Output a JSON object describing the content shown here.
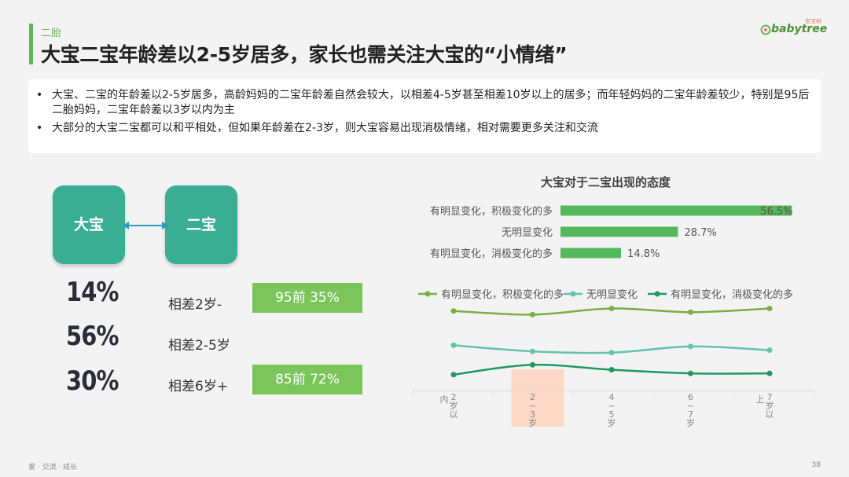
{
  "header": {
    "section_label": "二胎",
    "title": "大宝二宝年龄差以2-5岁居多，家长也需关注大宝的“小情绪”",
    "logo_text": "babytree",
    "logo_small": "宝宝树"
  },
  "bullets": [
    "大宝、二宝的年龄差以2-5岁居多，高龄妈妈的二宝年龄差自然会较大，以相差4-5岁甚至相差10岁以上的居多；而年轻妈妈的二宝年龄差较少，特别是95后二胎妈妈，二宝年龄差以3岁以内为主",
    "大部分的大宝二宝都可以和平相处，但如果年龄差在2-3岁，则大宝容易出现消极情绪，相对需要更多关注和交流"
  ],
  "left_panel": {
    "bubble_left": "大宝",
    "bubble_right": "二宝",
    "rows": [
      {
        "percent": "14%",
        "label": "相差2岁-",
        "box": "95前 35%"
      },
      {
        "percent": "56%",
        "label": "相差2-5岁",
        "box": ""
      },
      {
        "percent": "30%",
        "label": "相差6岁+",
        "box": "85前 72%"
      }
    ]
  },
  "colors": {
    "accent_green": "#5cb85c",
    "bar_green": "#55b85c",
    "teal": "#3aae92",
    "box_green": "#7bc55a",
    "series_1": "#7bad45",
    "series_2": "#63c3a9",
    "series_3": "#1f9a5c",
    "highlight": "#fbd9c6"
  },
  "chart_data": [
    {
      "type": "bar",
      "title": "大宝对于二宝出现的态度",
      "orientation": "horizontal",
      "categories": [
        "有明显变化，积极变化的多",
        "无明显变化",
        "有明显变化，消极变化的多"
      ],
      "values": [
        56.5,
        28.7,
        14.8
      ],
      "value_labels": [
        "56.5%",
        "28.7%",
        "14.8%"
      ],
      "xlim": [
        0,
        58
      ]
    },
    {
      "type": "line",
      "categories": [
        "2岁以内",
        "2-3岁",
        "4-5岁",
        "6-7岁",
        "7岁以上"
      ],
      "category_labels": [
        {
          "side": "内",
          "main": "2岁以"
        },
        {
          "side": "",
          "main": "2-3岁"
        },
        {
          "side": "",
          "main": "4-5岁"
        },
        {
          "side": "",
          "main": "6-7岁"
        },
        {
          "side": "上",
          "main": "7岁以"
        }
      ],
      "series": [
        {
          "name": "有明显变化，积极变化的多",
          "values": [
            60,
            57,
            62,
            59,
            62
          ]
        },
        {
          "name": "无明显变化",
          "values": [
            32,
            27,
            26,
            31,
            28
          ]
        },
        {
          "name": "有明显变化，消极变化的多",
          "values": [
            8,
            16,
            12,
            9,
            9
          ]
        }
      ],
      "highlight_category": "2-3岁",
      "ylim": [
        -5,
        72
      ],
      "legend": "top"
    }
  ],
  "footer": {
    "left": "爱 · 交流 · 成长",
    "page": "38"
  }
}
